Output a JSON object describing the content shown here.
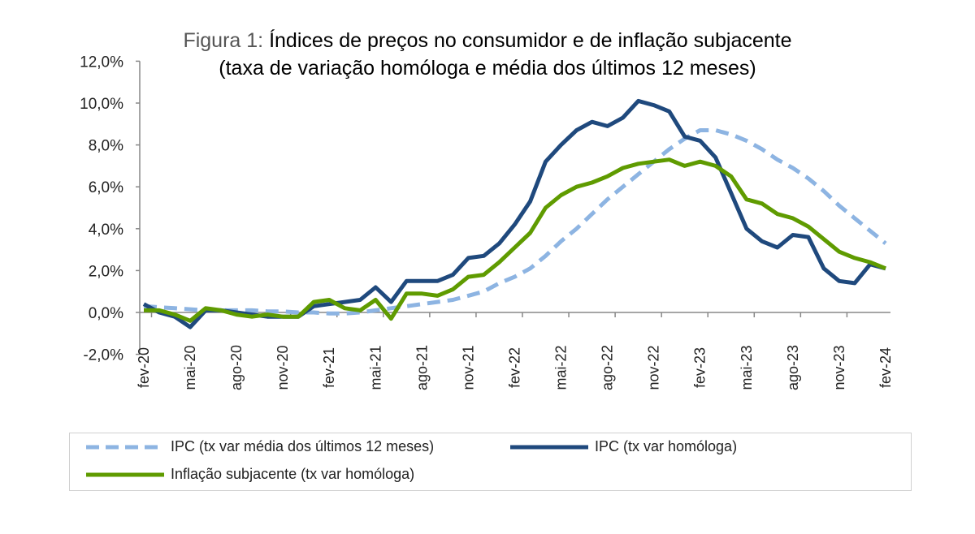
{
  "chart_data": {
    "type": "line",
    "title_prefix": "Figura 1:",
    "title": "Índices de preços no consumidor e de inflação subjacente",
    "subtitle": "(taxa de variação homóloga e média dos últimos 12 meses)",
    "xlabel": "",
    "ylabel": "",
    "ylim": [
      -2,
      12
    ],
    "yticks": [
      -2,
      0,
      2,
      4,
      6,
      8,
      10,
      12
    ],
    "ytick_labels": [
      "-2,0%",
      "0,0%",
      "2,0%",
      "4,0%",
      "6,0%",
      "8,0%",
      "10,0%",
      "12,0%"
    ],
    "x": [
      "fev-20",
      "mar-20",
      "abr-20",
      "mai-20",
      "jun-20",
      "jul-20",
      "ago-20",
      "set-20",
      "out-20",
      "nov-20",
      "dez-20",
      "jan-21",
      "fev-21",
      "mar-21",
      "abr-21",
      "mai-21",
      "jun-21",
      "jul-21",
      "ago-21",
      "set-21",
      "out-21",
      "nov-21",
      "dez-21",
      "jan-22",
      "fev-22",
      "mar-22",
      "abr-22",
      "mai-22",
      "jun-22",
      "jul-22",
      "ago-22",
      "set-22",
      "out-22",
      "nov-22",
      "dez-22",
      "jan-23",
      "fev-23",
      "mar-23",
      "abr-23",
      "mai-23",
      "jun-23",
      "jul-23",
      "ago-23",
      "set-23",
      "out-23",
      "nov-23",
      "dez-23",
      "jan-24",
      "fev-24"
    ],
    "xtick_labels": [
      "fev-20",
      "mai-20",
      "ago-20",
      "nov-20",
      "fev-21",
      "mai-21",
      "ago-21",
      "nov-21",
      "fev-22",
      "mai-22",
      "ago-22",
      "nov-22",
      "fev-23",
      "mai-23",
      "ago-23",
      "nov-23",
      "fev-24"
    ],
    "grid": false,
    "legend_position": "bottom",
    "series": [
      {
        "name": "IPC (tx var média dos últimos 12 meses)",
        "color": "#8db4e2",
        "style": "dashed",
        "values": [
          0.3,
          0.25,
          0.2,
          0.15,
          0.1,
          0.1,
          0.1,
          0.1,
          0.05,
          0.05,
          0.0,
          0.0,
          -0.05,
          -0.05,
          0.0,
          0.1,
          0.2,
          0.3,
          0.4,
          0.5,
          0.6,
          0.8,
          1.0,
          1.4,
          1.7,
          2.1,
          2.7,
          3.4,
          4.0,
          4.7,
          5.4,
          6.0,
          6.6,
          7.2,
          7.8,
          8.3,
          8.7,
          8.7,
          8.5,
          8.2,
          7.8,
          7.3,
          6.9,
          6.4,
          5.8,
          5.1,
          4.5,
          3.9,
          3.3
        ]
      },
      {
        "name": "IPC (tx var homóloga)",
        "color": "#1f497d",
        "style": "solid",
        "values": [
          0.4,
          0.0,
          -0.2,
          -0.7,
          0.1,
          0.1,
          0.0,
          -0.1,
          -0.2,
          -0.2,
          -0.2,
          0.3,
          0.4,
          0.5,
          0.6,
          1.2,
          0.5,
          1.5,
          1.5,
          1.5,
          1.8,
          2.6,
          2.7,
          3.3,
          4.2,
          5.3,
          7.2,
          8.0,
          8.7,
          9.1,
          8.9,
          9.3,
          10.1,
          9.9,
          9.6,
          8.4,
          8.2,
          7.4,
          5.7,
          4.0,
          3.4,
          3.1,
          3.7,
          3.6,
          2.1,
          1.5,
          1.4,
          2.3,
          2.1
        ]
      },
      {
        "name": "Inflação subjacente (tx var homóloga)",
        "color": "#5f9b00",
        "style": "solid",
        "values": [
          0.1,
          0.1,
          -0.1,
          -0.4,
          0.2,
          0.1,
          -0.1,
          -0.2,
          -0.1,
          -0.2,
          -0.2,
          0.5,
          0.6,
          0.2,
          0.1,
          0.6,
          -0.3,
          0.9,
          0.9,
          0.8,
          1.1,
          1.7,
          1.8,
          2.4,
          3.1,
          3.8,
          5.0,
          5.6,
          6.0,
          6.2,
          6.5,
          6.9,
          7.1,
          7.2,
          7.3,
          7.0,
          7.2,
          7.0,
          6.5,
          5.4,
          5.2,
          4.7,
          4.5,
          4.1,
          3.5,
          2.9,
          2.6,
          2.4,
          2.1
        ]
      }
    ]
  }
}
